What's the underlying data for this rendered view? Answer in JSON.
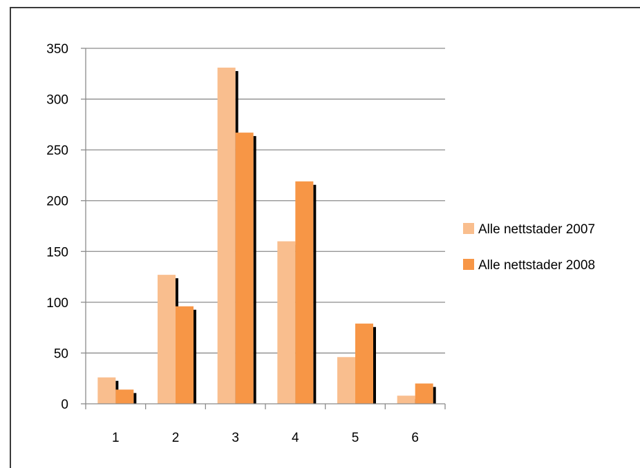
{
  "chart_data": {
    "type": "bar",
    "title": "",
    "xlabel": "",
    "ylabel": "",
    "categories": [
      "1",
      "2",
      "3",
      "4",
      "5",
      "6"
    ],
    "ylim": [
      0,
      350
    ],
    "yticks": [
      "0",
      "50",
      "100",
      "150",
      "200",
      "250",
      "300",
      "350"
    ],
    "grid": true,
    "legend_position": "right",
    "series": [
      {
        "name": "Alle nettstader 2007",
        "values": [
          26,
          127,
          331,
          160,
          46,
          8
        ],
        "color": "#F9BE8E"
      },
      {
        "name": "Alle nettstader 2008",
        "values": [
          14,
          96,
          267,
          219,
          79,
          20
        ],
        "color": "#F79646"
      }
    ]
  }
}
